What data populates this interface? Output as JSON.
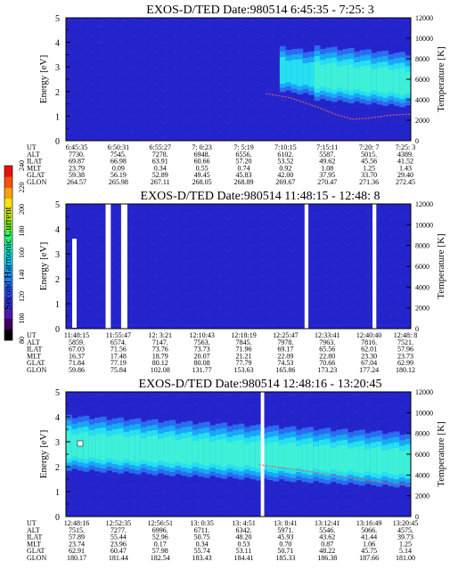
{
  "chart_data": [
    {
      "type": "heatmap",
      "title": "EXOS-D/TED   Date:980514   6:45:35 - 7:25: 3",
      "ylabel": "Energy [eV]",
      "y2label": "Temperature [K]",
      "ylim": [
        0,
        5
      ],
      "yticks": [
        "0",
        "1",
        "2",
        "3",
        "4",
        "5"
      ],
      "y2lim": [
        0,
        12000
      ],
      "y2ticks": [
        "0",
        "2000",
        "4000",
        "6000",
        "8000",
        "10000",
        "12000"
      ],
      "band": {
        "segments": [
          {
            "x0": 0.62,
            "x1": 0.72,
            "center": [
              2.8,
              2.6
            ],
            "level": "low"
          },
          {
            "x0": 0.72,
            "x1": 1.0,
            "center": [
              2.6,
              2.3
            ],
            "level": "high"
          }
        ]
      },
      "temperature_trace": {
        "from": 0.58,
        "points": [
          [
            0.58,
            4600
          ],
          [
            0.65,
            4200
          ],
          [
            0.72,
            3400
          ],
          [
            0.78,
            2600
          ],
          [
            0.83,
            2100
          ],
          [
            0.88,
            2200
          ],
          [
            0.94,
            2500
          ],
          [
            1.0,
            2600
          ]
        ]
      },
      "gaps": [],
      "orbit_labels": [
        "UT",
        "ALT",
        "ILAT",
        "MLT",
        "GLAT",
        "GLON"
      ],
      "orbit_columns": [
        [
          "6:45:35",
          "7730.",
          "69.87",
          "23.79",
          "59.38",
          "264.57"
        ],
        [
          "6:50:31",
          "7545.",
          "66.98",
          "0.09",
          "56.19",
          "265.98"
        ],
        [
          "6:55:27",
          "7278.",
          "63.91",
          "0.34",
          "52.89",
          "267.11"
        ],
        [
          "7: 0:23",
          "6948.",
          "60.66",
          "0.55",
          "49.45",
          "268.05"
        ],
        [
          "7: 5:19",
          "6556.",
          "57.20",
          "0.74",
          "45.83",
          "268.89"
        ],
        [
          "7:10:15",
          "6102.",
          "53.52",
          "0.92",
          "42.00",
          "269.67"
        ],
        [
          "7:15:11",
          "5587.",
          "49.62",
          "1.08",
          "37.95",
          "270.47"
        ],
        [
          "7:20: 7",
          "5015.",
          "45.56",
          "1.25",
          "33.70",
          "271.36"
        ],
        [
          "7:25: 3",
          "4389.",
          "41.52",
          "1.43",
          "29.40",
          "272.45"
        ]
      ]
    },
    {
      "type": "heatmap",
      "title": "EXOS-D/TED   Date:980514   11:48:15 - 12:48: 8",
      "ylabel": "Energy [eV]",
      "y2label": "Temperature [K]",
      "ylim": [
        0,
        5
      ],
      "yticks": [
        "0",
        "1",
        "2",
        "3",
        "4",
        "5"
      ],
      "y2lim": [
        0,
        12000
      ],
      "y2ticks": [
        "0",
        "2000",
        "4000",
        "6000",
        "8000",
        "10000",
        "12000"
      ],
      "band": null,
      "temperature_trace": null,
      "gaps": [
        [
          0.115,
          0.13
        ],
        [
          0.16,
          0.178
        ],
        [
          0.692,
          0.703
        ],
        [
          0.889,
          0.9
        ]
      ],
      "orbit_labels": [
        "UT",
        "ALT",
        "ILAT",
        "MLT",
        "GLAT",
        "GLON"
      ],
      "orbit_columns": [
        [
          "11:48:15",
          "5859.",
          "67.03",
          "16.37",
          "71.84",
          "59.86"
        ],
        [
          "11:55:47",
          "6574.",
          "71.56",
          "17.48",
          "77.19",
          "75.84"
        ],
        [
          "12: 3:21",
          "7147.",
          "73.76",
          "18.79",
          "80.12",
          "102.08"
        ],
        [
          "12:10:43",
          "7563.",
          "73.73",
          "20.07",
          "80.08",
          "131.77"
        ],
        [
          "12:18:19",
          "7845.",
          "71.96",
          "21.21",
          "77.79",
          "153.63"
        ],
        [
          "12:25:47",
          "7978.",
          "69.17",
          "22.09",
          "74.53",
          "165.86"
        ],
        [
          "12:33:41",
          "7963.",
          "65.56",
          "22.80",
          "70.66",
          "173.23"
        ],
        [
          "12:40:40",
          "7816.",
          "62.01",
          "23.30",
          "67.04",
          "177.24"
        ],
        [
          "12:48: 8",
          "7521.",
          "57.96",
          "23.73",
          "62.99",
          "180.12"
        ]
      ]
    },
    {
      "type": "heatmap",
      "title": "EXOS-D/TED   Date:980514   12:48:16 - 13:20:45",
      "ylabel": "Energy [eV]",
      "y2label": "Temperature [K]",
      "ylim": [
        0,
        5
      ],
      "yticks": [
        "0",
        "1",
        "2",
        "3",
        "4",
        "5"
      ],
      "y2lim": [
        0,
        12000
      ],
      "y2ticks": [
        "0",
        "2000",
        "4000",
        "6000",
        "8000",
        "10000",
        "12000"
      ],
      "band": {
        "segments": [
          {
            "x0": 0.0,
            "x1": 1.0,
            "center": [
              2.8,
              2.1
            ],
            "level": "high"
          }
        ]
      },
      "temperature_trace": {
        "from": 0.56,
        "points": [
          [
            0.56,
            5000
          ],
          [
            0.65,
            4600
          ],
          [
            0.75,
            4100
          ],
          [
            0.85,
            3600
          ],
          [
            0.93,
            3200
          ],
          [
            1.0,
            3000
          ]
        ]
      },
      "gaps": [
        [
          0.565,
          0.575
        ]
      ],
      "orbit_labels": [
        "UT",
        "ALT",
        "ILAT",
        "MLT",
        "GLAT",
        "GLON"
      ],
      "orbit_columns": [
        [
          "12:48:16",
          "7515.",
          "57.89",
          "23.74",
          "62.91",
          "180.17"
        ],
        [
          "12:52:35",
          "7277.",
          "55.44",
          "23.96",
          "60.47",
          "181.44"
        ],
        [
          "12:56:51",
          "6996.",
          "52.96",
          "0.17",
          "57.98",
          "182.54"
        ],
        [
          "13: 0:35",
          "6711.",
          "50.75",
          "0.34",
          "55.74",
          "183.43"
        ],
        [
          "13: 4:51",
          "6342.",
          "48.20",
          "0.53",
          "53.11",
          "184.41"
        ],
        [
          "13: 8:41",
          "5971.",
          "45.93",
          "0.70",
          "50.71",
          "185.33"
        ],
        [
          "13:12:41",
          "5546.",
          "43.62",
          "0.87",
          "48.22",
          "186.38"
        ],
        [
          "13:16:49",
          "5066.",
          "41.44",
          "1.06",
          "45.75",
          "187.66"
        ],
        [
          "13:20:45",
          "4575.",
          "39.73",
          "1.25",
          "5.14",
          "181.00"
        ]
      ]
    }
  ],
  "colorbar": {
    "label": "Second Harmonic Current",
    "ticks": [
      "80",
      "100",
      "120",
      "140",
      "160",
      "180",
      "200",
      "220",
      "240"
    ],
    "range": [
      80,
      240
    ],
    "colors": [
      "#000000",
      "#3a0060",
      "#4a1aa8",
      "#3030d8",
      "#2a50f0",
      "#1e7cf8",
      "#12a8f8",
      "#10d8f0",
      "#18f0b8",
      "#30f070",
      "#78f030",
      "#c8f018",
      "#f8e010",
      "#f8a010",
      "#f85010",
      "#e81010"
    ]
  },
  "colors": {
    "background": "#2424cc",
    "trace": "#d46060",
    "band_low": [
      "#2a6cf0",
      "#18a8f8",
      "#26e0f0"
    ],
    "band_high": [
      "#2a6cf0",
      "#18a8f8",
      "#26e0f0",
      "#3ef0d8"
    ]
  }
}
